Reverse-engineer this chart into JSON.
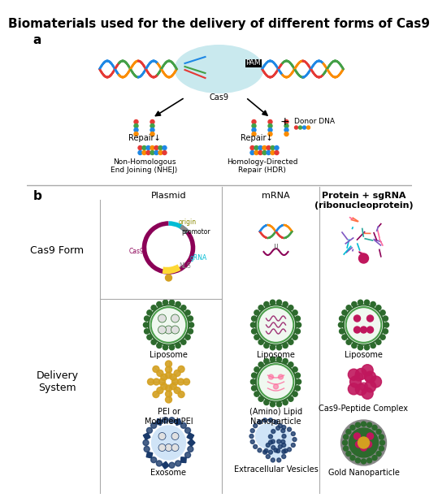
{
  "title": "Biomaterials used for the delivery of different forms of Cas9",
  "title_fontsize": 11,
  "title_fontweight": "bold",
  "bg_color": "#ffffff",
  "label_a": "a",
  "label_b": "b",
  "col_headers": [
    "Plasmid",
    "mRNA",
    "Protein + sgRNA\n(ribonucleoprotein)"
  ],
  "green_dark": "#2d6a2d",
  "green_mid": "#4a9e4a",
  "green_light": "#c8e6c8",
  "blue_dark": "#1a3a6b",
  "blue_light": "#d0e4f7",
  "magenta": "#c0175d",
  "gold": "#d4a020",
  "teal_light": "#b2e0e8",
  "gray_line": "#aaaaaa",
  "dna_colors": [
    "#e53935",
    "#43a047",
    "#1e88e5",
    "#fb8c00"
  ]
}
